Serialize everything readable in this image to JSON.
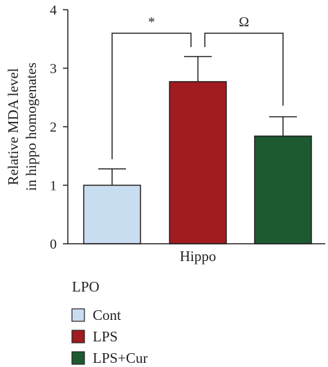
{
  "chart_data": {
    "type": "bar",
    "ylabel_lines": [
      "Relative MDA level",
      "in hippo homogenates"
    ],
    "xlabel": "Hippo",
    "ylim": [
      0,
      4
    ],
    "yticks": [
      "0",
      "1",
      "2",
      "3",
      "4"
    ],
    "series": [
      {
        "name": "Cont",
        "value": 1.0,
        "error": 0.28,
        "color": "#c9ddf1"
      },
      {
        "name": "LPS",
        "value": 2.77,
        "error": 0.43,
        "color": "#a01c20"
      },
      {
        "name": "LPS+Cur",
        "value": 1.84,
        "error": 0.33,
        "color": "#1d5a30"
      }
    ],
    "significance": [
      {
        "between": [
          "Cont",
          "LPS"
        ],
        "label": "*"
      },
      {
        "between": [
          "LPS",
          "LPS+Cur"
        ],
        "label": "Ω"
      }
    ],
    "legend": {
      "title": "LPO",
      "position": "bottom-left"
    },
    "grid": false
  }
}
